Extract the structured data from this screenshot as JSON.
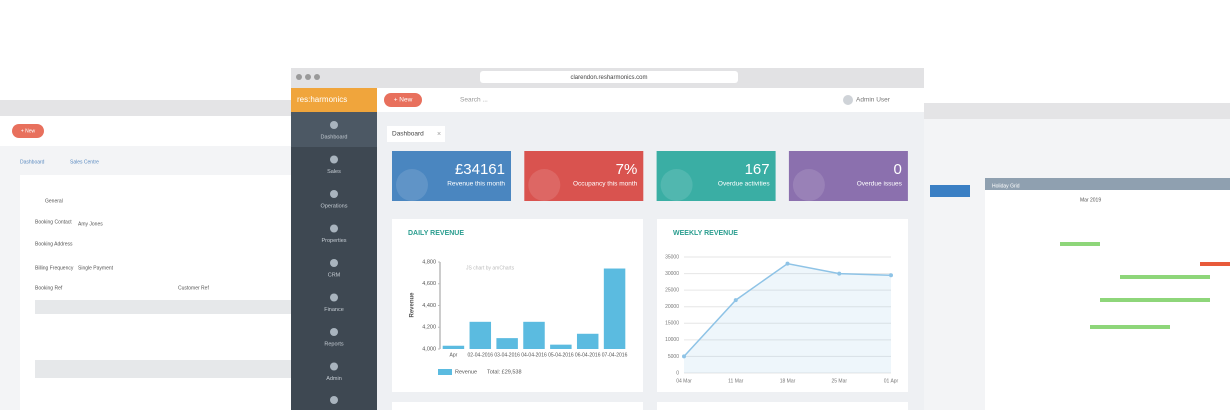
{
  "browser": {
    "url": "clarendon.resharmonics.com"
  },
  "app": {
    "logo": "res:harmonics",
    "new_button": "+ New",
    "search": "Search ...",
    "user": "Admin User"
  },
  "sidebar": {
    "items": [
      "Dashboard",
      "Sales",
      "Operations",
      "Properties",
      "CRM",
      "Finance",
      "Reports",
      "Admin"
    ]
  },
  "tab": "Dashboard",
  "kpis": [
    {
      "value": "£34161",
      "label": "Revenue this month",
      "color": "#4a86c0"
    },
    {
      "value": "7%",
      "label": "Occupancy this month",
      "color": "#d9534f"
    },
    {
      "value": "167",
      "label": "Overdue activities",
      "color": "#3aaea4"
    },
    {
      "value": "0",
      "label": "Overdue issues",
      "color": "#8b70ae"
    }
  ],
  "chart_data": [
    {
      "type": "bar",
      "title": "DAILY REVENUE",
      "y_label": "Revenue",
      "watermark": "JS chart by amCharts",
      "categories": [
        "Apr",
        "02-04-2016",
        "03-04-2016",
        "04-04-2016",
        "05-04-2016",
        "06-04-2016",
        "07-04-2016"
      ],
      "series": [
        {
          "name": "Revenue",
          "color": "#5bbbe0",
          "values": [
            4030,
            4250,
            4100,
            4250,
            4040,
            4140,
            4740
          ]
        }
      ],
      "total_label": "Total: £29,538",
      "ylim": [
        4000,
        4800
      ],
      "yticks": [
        {
          "value": 4000,
          "label": "4,000"
        },
        {
          "value": 4200,
          "label": "4,200"
        },
        {
          "value": 4400,
          "label": "4,400"
        },
        {
          "value": 4600,
          "label": "4,600"
        },
        {
          "value": 4800,
          "label": "4,800"
        }
      ],
      "grid": false
    },
    {
      "type": "line",
      "title": "WEEKLY REVENUE",
      "categories": [
        "04 Mar",
        "11 Mar",
        "18 Mar",
        "25 Mar",
        "01 Apr"
      ],
      "values": [
        5000,
        22000,
        33000,
        30000,
        29500
      ],
      "color": "#8ec3e6",
      "ylim": [
        0,
        35000
      ],
      "yticks": [
        0,
        5000,
        10000,
        15000,
        20000,
        25000,
        30000,
        35000
      ],
      "grid": true
    }
  ],
  "side_windows": {
    "left": {
      "new_button": "+ New",
      "tabs": [
        "Dashboard",
        "Sales Centre"
      ],
      "fields": [
        "General",
        "Booking Contact",
        "Amy Jones",
        "Booking Address",
        "Billing Frequency",
        "Single Payment",
        "Booking Ref",
        "Customer Ref"
      ]
    },
    "right": {
      "title": "Holiday Grid",
      "month": "Mar 2019"
    }
  }
}
